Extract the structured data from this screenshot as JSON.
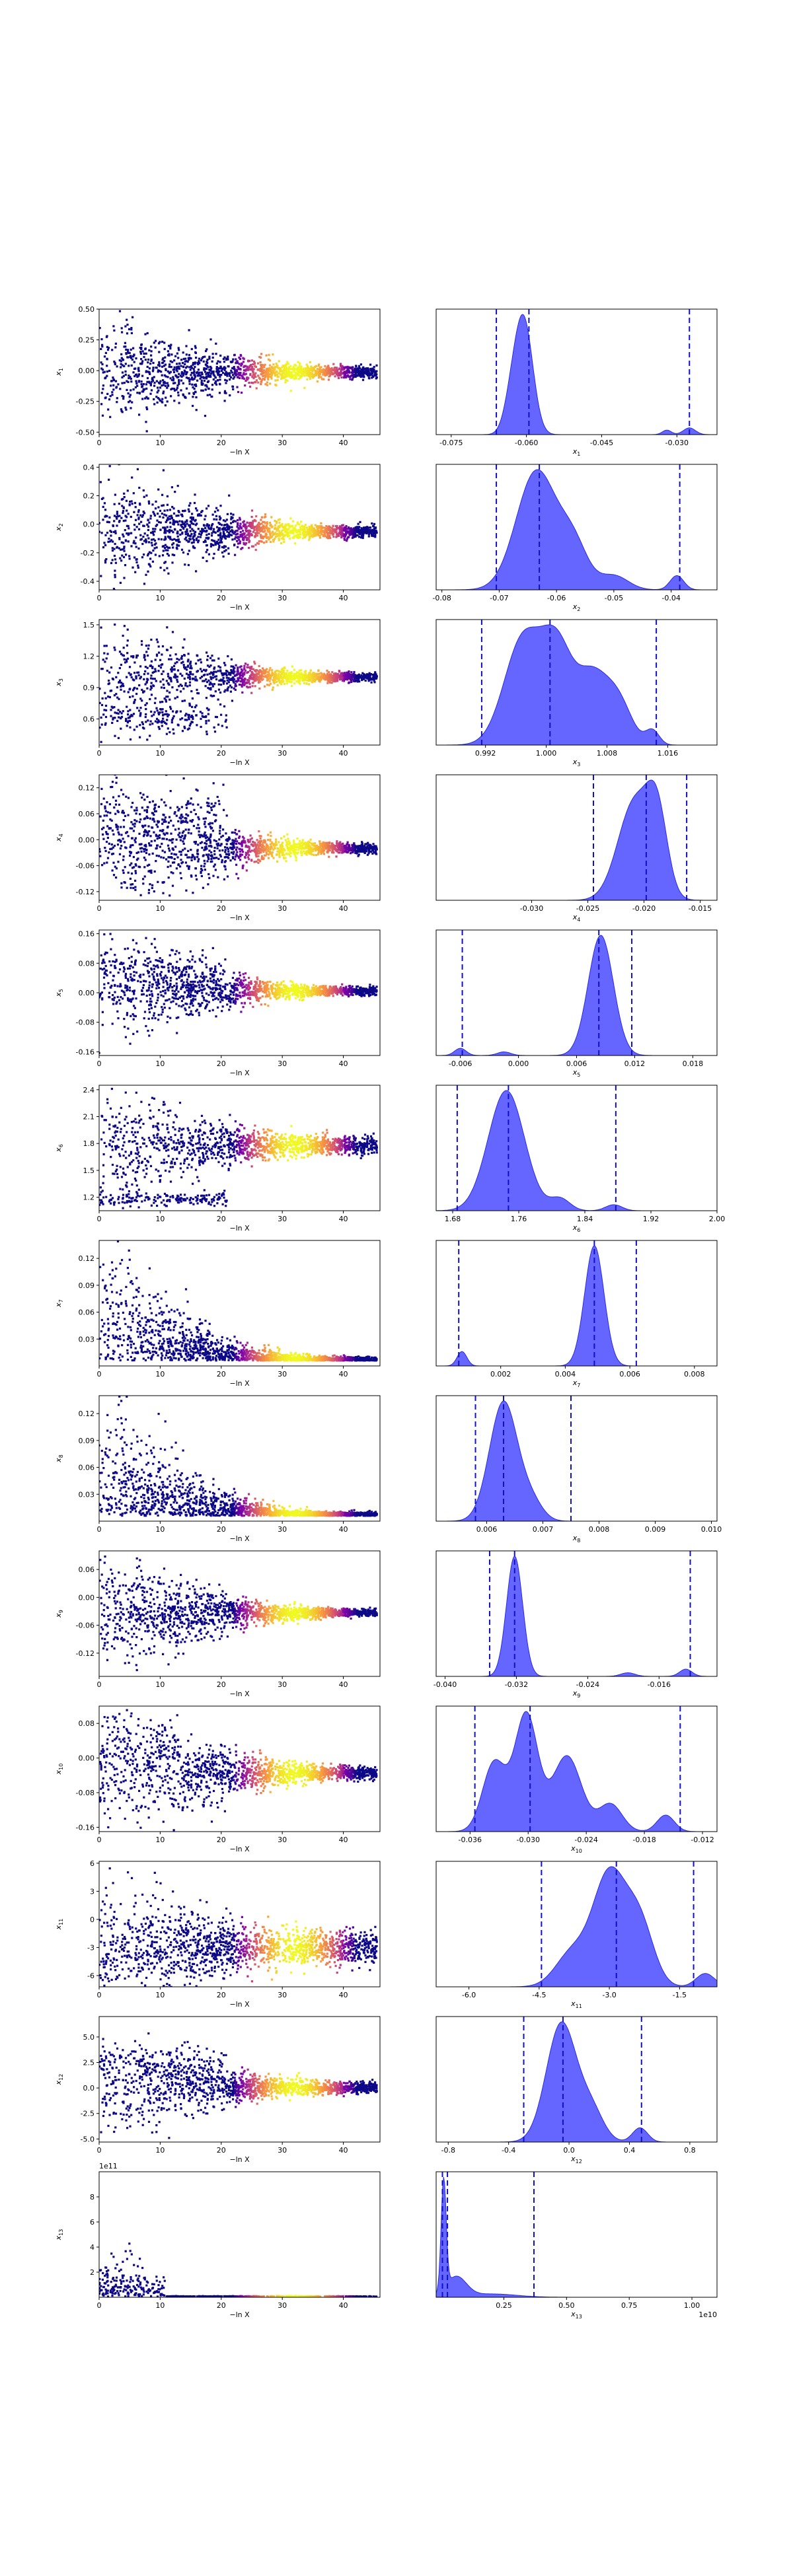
{
  "colors": {
    "kde_fill": "#3a3aff",
    "kde_line": "#2a2ae6",
    "quantile_line": "#1010c8",
    "frame": "#000000"
  },
  "chart_data": [
    {
      "param": "x1",
      "type": "scatter",
      "panel": "trace",
      "ylabel_sub": "1",
      "xlabel": "−ln X",
      "xlim": [
        0,
        46
      ],
      "ylim": [
        -0.52,
        0.5
      ],
      "xticks": [
        "0",
        "10",
        "20",
        "30",
        "40"
      ],
      "yticks": [
        "-0.50",
        "-0.25",
        "0.00",
        "0.25",
        "0.50"
      ],
      "yticks_v": [
        -0.5,
        -0.25,
        0,
        0.25,
        0.5
      ],
      "center": -0.01,
      "early_spread": 0.18,
      "late_spread": 0.025,
      "cluster2": null
    },
    {
      "param": "x1",
      "type": "area",
      "panel": "kde",
      "xlabel_sub": "1",
      "xlim": [
        -0.078,
        -0.022
      ],
      "xticks": [
        "-0.075",
        "-0.060",
        "-0.045",
        "-0.030"
      ],
      "xticks_v": [
        -0.075,
        -0.06,
        -0.045,
        -0.03
      ],
      "quantiles": [
        -0.066,
        -0.0595,
        -0.0275
      ],
      "peaks": [
        {
          "mu": -0.0605,
          "sd": 0.0018,
          "h": 1.0
        },
        {
          "mu": -0.063,
          "sd": 0.0015,
          "h": 0.25
        },
        {
          "mu": -0.0275,
          "sd": 0.0012,
          "h": 0.06
        },
        {
          "mu": -0.032,
          "sd": 0.0009,
          "h": 0.04
        }
      ]
    },
    {
      "param": "x2",
      "type": "scatter",
      "panel": "trace",
      "ylabel_sub": "2",
      "xlabel": "−ln X",
      "xlim": [
        0,
        46
      ],
      "ylim": [
        -0.46,
        0.42
      ],
      "xticks": [
        "0",
        "10",
        "20",
        "30",
        "40"
      ],
      "yticks": [
        "-0.4",
        "-0.2",
        "0.0",
        "0.2",
        "0.4"
      ],
      "yticks_v": [
        -0.4,
        -0.2,
        0,
        0.2,
        0.4
      ],
      "center": -0.05,
      "early_spread": 0.18,
      "late_spread": 0.02,
      "cluster2": null
    },
    {
      "param": "x2",
      "type": "area",
      "panel": "kde",
      "xlabel_sub": "2",
      "xlim": [
        -0.081,
        -0.032
      ],
      "xticks": [
        "-0.08",
        "-0.07",
        "-0.06",
        "-0.05",
        "-0.04"
      ],
      "xticks_v": [
        -0.08,
        -0.07,
        -0.06,
        -0.05,
        -0.04
      ],
      "quantiles": [
        -0.0705,
        -0.063,
        -0.0385
      ],
      "peaks": [
        {
          "mu": -0.0635,
          "sd": 0.0035,
          "h": 1.0
        },
        {
          "mu": -0.057,
          "sd": 0.0025,
          "h": 0.35
        },
        {
          "mu": -0.05,
          "sd": 0.0025,
          "h": 0.12
        },
        {
          "mu": -0.039,
          "sd": 0.0012,
          "h": 0.12
        }
      ]
    },
    {
      "param": "x3",
      "type": "scatter",
      "panel": "trace",
      "ylabel_sub": "3",
      "xlabel": "−ln X",
      "xlim": [
        0,
        46
      ],
      "ylim": [
        0.35,
        1.55
      ],
      "xticks": [
        "0",
        "10",
        "20",
        "30",
        "40"
      ],
      "yticks": [
        "0.6",
        "0.9",
        "1.2",
        "1.5"
      ],
      "yticks_v": [
        0.6,
        0.9,
        1.2,
        1.5
      ],
      "center": 1.0,
      "early_spread": 0.22,
      "late_spread": 0.02,
      "cluster2": {
        "center": 0.6,
        "xmax": 21,
        "spread": 0.07
      }
    },
    {
      "param": "x3",
      "type": "area",
      "panel": "kde",
      "xlabel_sub": "3",
      "xlim": [
        0.9855,
        1.0225
      ],
      "xticks": [
        "0.992",
        "1.000",
        "1.008",
        "1.016"
      ],
      "xticks_v": [
        0.992,
        1.0,
        1.008,
        1.016
      ],
      "quantiles": [
        0.9915,
        1.0005,
        1.0145
      ],
      "peaks": [
        {
          "mu": 0.997,
          "sd": 0.0025,
          "h": 0.9
        },
        {
          "mu": 1.0015,
          "sd": 0.002,
          "h": 0.75
        },
        {
          "mu": 1.006,
          "sd": 0.002,
          "h": 0.55
        },
        {
          "mu": 1.0095,
          "sd": 0.0018,
          "h": 0.35
        },
        {
          "mu": 1.014,
          "sd": 0.0009,
          "h": 0.12
        }
      ]
    },
    {
      "param": "x4",
      "type": "scatter",
      "panel": "trace",
      "ylabel_sub": "4",
      "xlabel": "−ln X",
      "xlim": [
        0,
        46
      ],
      "ylim": [
        -0.14,
        0.15
      ],
      "xticks": [
        "0",
        "10",
        "20",
        "30",
        "40"
      ],
      "yticks": [
        "-0.12",
        "-0.06",
        "0.00",
        "0.06",
        "0.12"
      ],
      "yticks_v": [
        -0.12,
        -0.06,
        0,
        0.06,
        0.12
      ],
      "center": -0.02,
      "early_spread": 0.07,
      "late_spread": 0.006,
      "cluster2": {
        "center": 0.06,
        "xmax": 21,
        "spread": 0.04
      }
    },
    {
      "param": "x4",
      "type": "area",
      "panel": "kde",
      "xlabel_sub": "4",
      "xlim": [
        -0.0385,
        -0.0135
      ],
      "xticks": [
        "-0.030",
        "-0.025",
        "-0.020",
        "-0.015"
      ],
      "xticks_v": [
        -0.03,
        -0.025,
        -0.02,
        -0.015
      ],
      "quantiles": [
        -0.0245,
        -0.0198,
        -0.0162
      ],
      "peaks": [
        {
          "mu": -0.0208,
          "sd": 0.0015,
          "h": 0.85
        },
        {
          "mu": -0.0188,
          "sd": 0.0009,
          "h": 0.6
        }
      ]
    },
    {
      "param": "x5",
      "type": "scatter",
      "panel": "trace",
      "ylabel_sub": "5",
      "xlabel": "−ln X",
      "xlim": [
        0,
        46
      ],
      "ylim": [
        -0.17,
        0.17
      ],
      "xticks": [
        "0",
        "10",
        "20",
        "30",
        "40"
      ],
      "yticks": [
        "-0.16",
        "-0.08",
        "0.00",
        "0.08",
        "0.16"
      ],
      "yticks_v": [
        -0.16,
        -0.08,
        0,
        0.08,
        0.16
      ],
      "center": 0.005,
      "early_spread": 0.07,
      "late_spread": 0.006,
      "cluster2": {
        "center": 0.05,
        "xmax": 21,
        "spread": 0.04
      }
    },
    {
      "param": "x5",
      "type": "area",
      "panel": "kde",
      "xlabel_sub": "5",
      "xlim": [
        -0.0085,
        0.0205
      ],
      "xticks": [
        "-0.006",
        "0.000",
        "0.006",
        "0.012",
        "0.018"
      ],
      "xticks_v": [
        -0.006,
        0,
        0.006,
        0.012,
        0.018
      ],
      "quantiles": [
        -0.0058,
        0.0083,
        0.0117
      ],
      "peaks": [
        {
          "mu": 0.0085,
          "sd": 0.0013,
          "h": 1.0
        },
        {
          "mu": -0.006,
          "sd": 0.0006,
          "h": 0.06
        },
        {
          "mu": -0.0015,
          "sd": 0.0007,
          "h": 0.03
        }
      ]
    },
    {
      "param": "x6",
      "type": "scatter",
      "panel": "trace",
      "ylabel_sub": "6",
      "xlabel": "−ln X",
      "xlim": [
        0,
        46
      ],
      "ylim": [
        1.05,
        2.45
      ],
      "xticks": [
        "0",
        "10",
        "20",
        "30",
        "40"
      ],
      "yticks": [
        "1.2",
        "1.5",
        "1.8",
        "2.1",
        "2.4"
      ],
      "yticks_v": [
        1.2,
        1.5,
        1.8,
        2.1,
        2.4
      ],
      "center": 1.78,
      "early_spread": 0.25,
      "late_spread": 0.05,
      "cluster2": {
        "center": 1.18,
        "xmax": 21,
        "spread": 0.04
      }
    },
    {
      "param": "x6",
      "type": "area",
      "panel": "kde",
      "xlabel_sub": "6",
      "xlim": [
        1.66,
        2.0
      ],
      "xticks": [
        "1.68",
        "1.76",
        "1.84",
        "1.92",
        "2.00"
      ],
      "xticks_v": [
        1.68,
        1.76,
        1.84,
        1.92,
        2.0
      ],
      "quantiles": [
        1.6855,
        1.7475,
        1.8775
      ],
      "peaks": [
        {
          "mu": 1.745,
          "sd": 0.022,
          "h": 1.0
        },
        {
          "mu": 1.81,
          "sd": 0.012,
          "h": 0.1
        },
        {
          "mu": 1.875,
          "sd": 0.01,
          "h": 0.05
        }
      ]
    },
    {
      "param": "x7",
      "type": "scatter",
      "panel": "trace",
      "ylabel_sub": "7",
      "xlabel": "−ln X",
      "xlim": [
        0,
        46
      ],
      "ylim": [
        0.0,
        0.14
      ],
      "xticks": [
        "0",
        "10",
        "20",
        "30",
        "40"
      ],
      "yticks": [
        "0.03",
        "0.06",
        "0.09",
        "0.12"
      ],
      "yticks_v": [
        0.03,
        0.06,
        0.09,
        0.12
      ],
      "center": 0.006,
      "early_spread": 0.06,
      "late_spread": 0.002,
      "cluster2": null,
      "positive": true
    },
    {
      "param": "x7",
      "type": "area",
      "panel": "kde",
      "xlabel_sub": "7",
      "xlim": [
        0.0,
        0.0087
      ],
      "xticks": [
        "0.002",
        "0.004",
        "0.006",
        "0.008"
      ],
      "xticks_v": [
        0.002,
        0.004,
        0.006,
        0.008
      ],
      "quantiles": [
        0.0007,
        0.0049,
        0.0062
      ],
      "peaks": [
        {
          "mu": 0.0049,
          "sd": 0.0003,
          "h": 1.0
        },
        {
          "mu": 0.0008,
          "sd": 0.00015,
          "h": 0.12
        }
      ]
    },
    {
      "param": "x8",
      "type": "scatter",
      "panel": "trace",
      "ylabel_sub": "8",
      "xlabel": "−ln X",
      "xlim": [
        0,
        46
      ],
      "ylim": [
        0.0,
        0.14
      ],
      "xticks": [
        "0",
        "10",
        "20",
        "30",
        "40"
      ],
      "yticks": [
        "0.03",
        "0.06",
        "0.09",
        "0.12"
      ],
      "yticks_v": [
        0.03,
        0.06,
        0.09,
        0.12
      ],
      "center": 0.006,
      "early_spread": 0.06,
      "late_spread": 0.002,
      "cluster2": null,
      "positive": true
    },
    {
      "param": "x8",
      "type": "area",
      "panel": "kde",
      "xlabel_sub": "8",
      "xlim": [
        0.0051,
        0.0101
      ],
      "xticks": [
        "0.006",
        "0.007",
        "0.008",
        "0.009",
        "0.010"
      ],
      "xticks_v": [
        0.006,
        0.007,
        0.008,
        0.009,
        0.01
      ],
      "quantiles": [
        0.0058,
        0.0063,
        0.0075
      ],
      "peaks": [
        {
          "mu": 0.0063,
          "sd": 0.00025,
          "h": 1.0
        },
        {
          "mu": 0.0068,
          "sd": 0.0002,
          "h": 0.15
        }
      ]
    },
    {
      "param": "x9",
      "type": "scatter",
      "panel": "trace",
      "ylabel_sub": "9",
      "xlabel": "−ln X",
      "xlim": [
        0,
        46
      ],
      "ylim": [
        -0.17,
        0.1
      ],
      "xticks": [
        "0",
        "10",
        "20",
        "30",
        "40"
      ],
      "yticks": [
        "-0.12",
        "-0.06",
        "0.00",
        "0.06"
      ],
      "yticks_v": [
        -0.12,
        -0.06,
        0,
        0.06
      ],
      "center": -0.033,
      "early_spread": 0.06,
      "late_spread": 0.004,
      "cluster2": null
    },
    {
      "param": "x9",
      "type": "area",
      "panel": "kde",
      "xlabel_sub": "9",
      "xlim": [
        -0.041,
        -0.0095
      ],
      "xticks": [
        "-0.040",
        "-0.032",
        "-0.024",
        "-0.016"
      ],
      "xticks_v": [
        -0.04,
        -0.032,
        -0.024,
        -0.016
      ],
      "quantiles": [
        -0.035,
        -0.0322,
        -0.0125
      ],
      "peaks": [
        {
          "mu": -0.0322,
          "sd": 0.0009,
          "h": 1.0
        },
        {
          "mu": -0.013,
          "sd": 0.0007,
          "h": 0.06
        },
        {
          "mu": -0.0195,
          "sd": 0.0008,
          "h": 0.03
        }
      ]
    },
    {
      "param": "x10",
      "type": "scatter",
      "panel": "trace",
      "ylabel_sub": "10",
      "xlabel": "−ln X",
      "xlim": [
        0,
        46
      ],
      "ylim": [
        -0.17,
        0.12
      ],
      "xticks": [
        "0",
        "10",
        "20",
        "30",
        "40"
      ],
      "yticks": [
        "-0.16",
        "-0.08",
        "0.00",
        "0.08"
      ],
      "yticks_v": [
        -0.16,
        -0.08,
        0,
        0.08
      ],
      "center": -0.035,
      "early_spread": 0.07,
      "late_spread": 0.008,
      "cluster2": {
        "center": 0.03,
        "xmax": 13,
        "spread": 0.035
      }
    },
    {
      "param": "x10",
      "type": "area",
      "panel": "kde",
      "xlabel_sub": "10",
      "xlim": [
        -0.0395,
        -0.0105
      ],
      "xticks": [
        "-0.036",
        "-0.030",
        "-0.024",
        "-0.018",
        "-0.012"
      ],
      "xticks_v": [
        -0.036,
        -0.03,
        -0.024,
        -0.018,
        -0.012
      ],
      "quantiles": [
        -0.0355,
        -0.0298,
        -0.0143
      ],
      "peaks": [
        {
          "mu": -0.0302,
          "sd": 0.0012,
          "h": 0.85
        },
        {
          "mu": -0.0335,
          "sd": 0.0012,
          "h": 0.5
        },
        {
          "mu": -0.026,
          "sd": 0.0015,
          "h": 0.55
        },
        {
          "mu": -0.0215,
          "sd": 0.0012,
          "h": 0.2
        },
        {
          "mu": -0.0158,
          "sd": 0.0009,
          "h": 0.12
        }
      ]
    },
    {
      "param": "x11",
      "type": "scatter",
      "panel": "trace",
      "ylabel_sub": "11",
      "xlabel": "−ln X",
      "xlim": [
        0,
        46
      ],
      "ylim": [
        -7.2,
        6.2
      ],
      "xticks": [
        "0",
        "10",
        "20",
        "30",
        "40"
      ],
      "yticks": [
        "-6",
        "-3",
        "0",
        "3",
        "6"
      ],
      "yticks_v": [
        -6,
        -3,
        0,
        3,
        6
      ],
      "center": -3.0,
      "early_spread": 2.3,
      "late_spread": 0.9,
      "cluster2": null
    },
    {
      "param": "x11",
      "type": "area",
      "panel": "kde",
      "xlabel_sub": "11",
      "xlim": [
        -6.7,
        -0.7
      ],
      "xticks": [
        "-6.0",
        "-4.5",
        "-3.0",
        "-1.5"
      ],
      "xticks_v": [
        -6,
        -4.5,
        -3,
        -1.5
      ],
      "quantiles": [
        -4.45,
        -2.85,
        -1.2
      ],
      "peaks": [
        {
          "mu": -3.0,
          "sd": 0.35,
          "h": 1.0
        },
        {
          "mu": -2.35,
          "sd": 0.3,
          "h": 0.55
        },
        {
          "mu": -3.8,
          "sd": 0.35,
          "h": 0.3
        },
        {
          "mu": -0.95,
          "sd": 0.2,
          "h": 0.12
        }
      ]
    },
    {
      "param": "x12",
      "type": "scatter",
      "panel": "trace",
      "ylabel_sub": "12",
      "xlabel": "−ln X",
      "xlim": [
        0,
        46
      ],
      "ylim": [
        -5.3,
        7.0
      ],
      "xticks": [
        "0",
        "10",
        "20",
        "30",
        "40"
      ],
      "yticks": [
        "-5.0",
        "-2.5",
        "0.0",
        "2.5",
        "5.0"
      ],
      "yticks_v": [
        -5,
        -2.5,
        0,
        2.5,
        5
      ],
      "center": 0.0,
      "early_spread": 2.0,
      "late_spread": 0.3,
      "cluster2": {
        "center": 2.5,
        "xmax": 21,
        "spread": 0.9
      }
    },
    {
      "param": "x12",
      "type": "area",
      "panel": "kde",
      "xlabel_sub": "12",
      "xlim": [
        -0.88,
        0.98
      ],
      "xticks": [
        "-0.8",
        "-0.4",
        "0.0",
        "0.4",
        "0.8"
      ],
      "xticks_v": [
        -0.8,
        -0.4,
        0,
        0.4,
        0.8
      ],
      "quantiles": [
        -0.3,
        -0.04,
        0.48
      ],
      "peaks": [
        {
          "mu": -0.05,
          "sd": 0.1,
          "h": 1.0
        },
        {
          "mu": 0.15,
          "sd": 0.08,
          "h": 0.25
        },
        {
          "mu": 0.47,
          "sd": 0.05,
          "h": 0.12
        }
      ]
    },
    {
      "param": "x13",
      "type": "scatter",
      "panel": "trace",
      "ylabel_sub": "13",
      "xlabel": "−ln X",
      "xlim": [
        0,
        46
      ],
      "ylim": [
        0.0,
        1.0
      ],
      "xticks": [
        "0",
        "10",
        "20",
        "30",
        "40"
      ],
      "yticks": [
        "2",
        "4",
        "6",
        "8"
      ],
      "yticks_v": [
        0.2,
        0.4,
        0.6,
        0.8
      ],
      "sci_label": "1e11",
      "center": 0.005,
      "early_spread": 0.15,
      "late_spread": 0.002,
      "cluster2": null,
      "positive": true,
      "sparse": true
    },
    {
      "param": "x13",
      "type": "area",
      "panel": "kde",
      "xlabel_sub": "13",
      "xlim": [
        -0.02,
        1.1
      ],
      "xticks": [
        "0.25",
        "0.50",
        "0.75",
        "1.00"
      ],
      "xticks_v": [
        0.25,
        0.5,
        0.75,
        1.0
      ],
      "sci_label": "1e10",
      "quantiles": [
        0.005,
        0.025,
        0.37
      ],
      "peaks": [
        {
          "mu": 0.01,
          "sd": 0.01,
          "h": 1.0
        },
        {
          "mu": 0.06,
          "sd": 0.04,
          "h": 0.18
        },
        {
          "mu": 0.2,
          "sd": 0.1,
          "h": 0.03
        }
      ]
    }
  ]
}
